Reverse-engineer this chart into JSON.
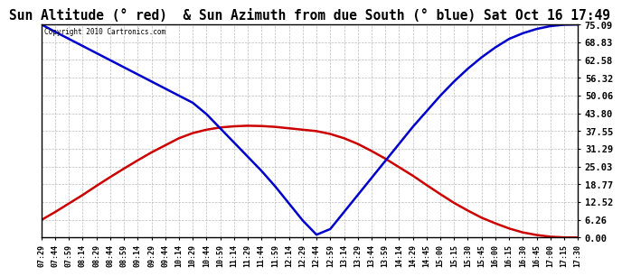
{
  "title": "Sun Altitude (° red)  & Sun Azimuth from due South (° blue) Sat Oct 16 17:49",
  "copyright": "Copyright 2010 Cartronics.com",
  "yticks": [
    0.0,
    6.26,
    12.52,
    18.77,
    25.03,
    31.29,
    37.55,
    43.8,
    50.06,
    56.32,
    62.58,
    68.83,
    75.09
  ],
  "ymax": 75.09,
  "ymin": 0.0,
  "xtick_labels": [
    "07:29",
    "07:44",
    "07:59",
    "08:14",
    "08:29",
    "08:44",
    "08:59",
    "09:14",
    "09:29",
    "09:44",
    "10:14",
    "10:29",
    "10:44",
    "10:59",
    "11:14",
    "11:29",
    "11:44",
    "11:59",
    "12:14",
    "12:29",
    "12:44",
    "12:59",
    "13:14",
    "13:29",
    "13:44",
    "13:59",
    "14:14",
    "14:29",
    "14:45",
    "15:00",
    "15:15",
    "15:30",
    "15:45",
    "16:00",
    "16:15",
    "16:30",
    "16:45",
    "17:00",
    "17:15",
    "17:30"
  ],
  "sun_altitude": [
    6.2,
    9.0,
    12.0,
    15.0,
    18.2,
    21.3,
    24.3,
    27.2,
    30.0,
    32.5,
    35.0,
    36.8,
    38.0,
    38.8,
    39.2,
    39.4,
    39.3,
    39.0,
    38.5,
    38.0,
    37.5,
    36.5,
    35.0,
    33.0,
    30.5,
    27.8,
    24.8,
    21.8,
    18.5,
    15.3,
    12.2,
    9.5,
    7.0,
    5.0,
    3.2,
    1.8,
    0.9,
    0.3,
    0.05,
    0.0
  ],
  "sun_azimuth": [
    75.09,
    72.5,
    70.0,
    67.5,
    65.0,
    62.5,
    60.0,
    57.5,
    55.0,
    52.5,
    50.0,
    47.5,
    43.5,
    38.5,
    33.5,
    28.5,
    23.5,
    18.0,
    12.0,
    6.0,
    1.0,
    3.0,
    9.0,
    15.0,
    21.0,
    27.0,
    33.0,
    39.0,
    44.5,
    50.0,
    55.0,
    59.5,
    63.5,
    67.0,
    70.0,
    72.0,
    73.5,
    74.5,
    75.0,
    75.09
  ],
  "altitude_color": "#cc0000",
  "azimuth_color": "#0000cc",
  "background_color": "#ffffff",
  "grid_color": "#aaaaaa",
  "title_fontsize": 10.5,
  "tick_label_fontsize": 6.0,
  "ytick_fontsize": 7.5
}
